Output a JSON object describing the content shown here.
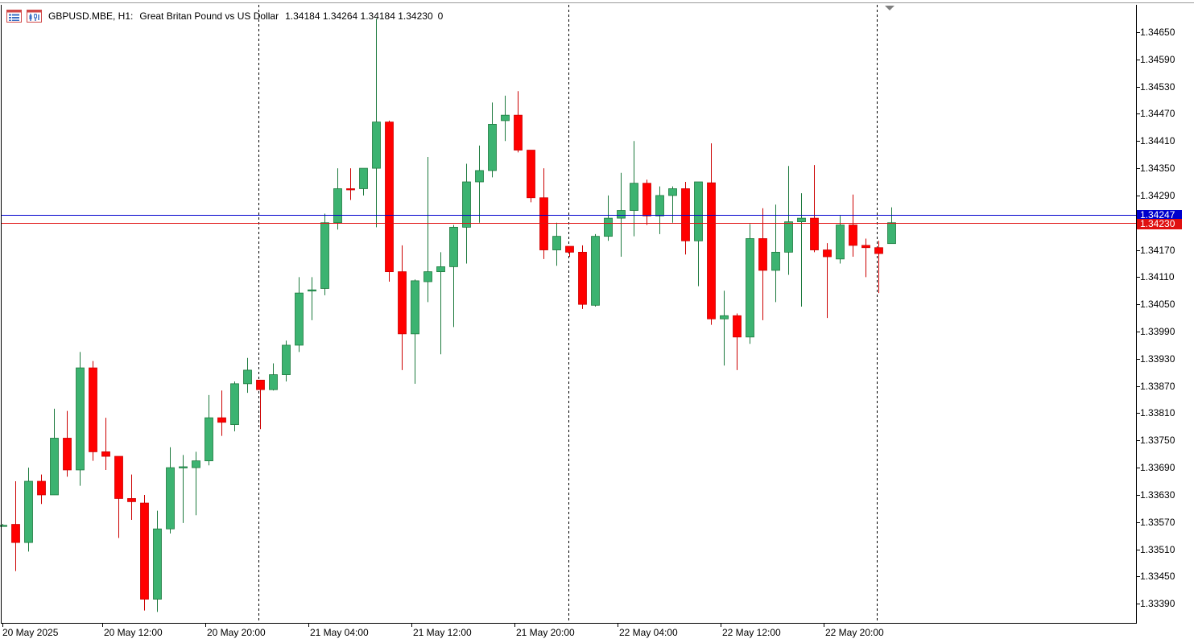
{
  "header": {
    "symbol": "GBPUSD.MBE, H1:",
    "description": "Great Britan Pound vs US Dollar",
    "ohlc": "1.34184 1.34264 1.34184 1.34230",
    "volume": "0",
    "icons": [
      "chart-list-icon",
      "chart-bars-icon"
    ]
  },
  "colors": {
    "bull": "#3cb371",
    "bear": "#ff0000",
    "bid_line": "#0000cd",
    "ask_line": "#e01010",
    "grid": "#000000"
  },
  "price_axis": {
    "labels": [
      "1.34650",
      "1.34590",
      "1.34530",
      "1.34470",
      "1.34410",
      "1.34350",
      "1.34290",
      "1.34170",
      "1.34110",
      "1.34050",
      "1.33990",
      "1.33930",
      "1.33870",
      "1.33810",
      "1.33750",
      "1.33690",
      "1.33630",
      "1.33570",
      "1.33510",
      "1.33450",
      "1.33390"
    ]
  },
  "time_axis": {
    "labels": [
      "20 May 2025",
      "20 May 12:00",
      "20 May 20:00",
      "21 May 04:00",
      "21 May 12:00",
      "21 May 20:00",
      "22 May 04:00",
      "22 May 12:00",
      "22 May 20:00"
    ]
  },
  "price_lines": {
    "bid": "1.34247",
    "ask": "1.34230"
  },
  "chart_data": {
    "type": "candlestick",
    "timeframe": "H1",
    "ylim": [
      1.3336,
      1.3472
    ],
    "candles": [
      {
        "o": 1.33563,
        "h": 1.33566,
        "l": 1.3356,
        "c": 1.33563
      },
      {
        "o": 1.33565,
        "h": 1.3366,
        "l": 1.33462,
        "c": 1.33525
      },
      {
        "o": 1.33525,
        "h": 1.3369,
        "l": 1.33505,
        "c": 1.3366
      },
      {
        "o": 1.3366,
        "h": 1.33675,
        "l": 1.3361,
        "c": 1.3363
      },
      {
        "o": 1.3363,
        "h": 1.3382,
        "l": 1.3363,
        "c": 1.33755
      },
      {
        "o": 1.33755,
        "h": 1.33815,
        "l": 1.3367,
        "c": 1.33685
      },
      {
        "o": 1.33685,
        "h": 1.33945,
        "l": 1.3365,
        "c": 1.3391
      },
      {
        "o": 1.3391,
        "h": 1.33925,
        "l": 1.33705,
        "c": 1.33725
      },
      {
        "o": 1.33725,
        "h": 1.338,
        "l": 1.33685,
        "c": 1.33715
      },
      {
        "o": 1.33715,
        "h": 1.33715,
        "l": 1.33535,
        "c": 1.33622
      },
      {
        "o": 1.33622,
        "h": 1.33675,
        "l": 1.33575,
        "c": 1.33615
      },
      {
        "o": 1.33612,
        "h": 1.3363,
        "l": 1.33375,
        "c": 1.334
      },
      {
        "o": 1.334,
        "h": 1.33595,
        "l": 1.33372,
        "c": 1.33555
      },
      {
        "o": 1.33555,
        "h": 1.33735,
        "l": 1.33545,
        "c": 1.3369
      },
      {
        "o": 1.3369,
        "h": 1.33718,
        "l": 1.33568,
        "c": 1.33692
      },
      {
        "o": 1.3369,
        "h": 1.33725,
        "l": 1.33585,
        "c": 1.33705
      },
      {
        "o": 1.33705,
        "h": 1.3385,
        "l": 1.33695,
        "c": 1.338
      },
      {
        "o": 1.338,
        "h": 1.3386,
        "l": 1.3376,
        "c": 1.3379
      },
      {
        "o": 1.33785,
        "h": 1.3388,
        "l": 1.3377,
        "c": 1.33875
      },
      {
        "o": 1.33875,
        "h": 1.33932,
        "l": 1.33855,
        "c": 1.33905
      },
      {
        "o": 1.33883,
        "h": 1.33883,
        "l": 1.33775,
        "c": 1.33862
      },
      {
        "o": 1.33862,
        "h": 1.3392,
        "l": 1.3386,
        "c": 1.33895
      },
      {
        "o": 1.33895,
        "h": 1.3397,
        "l": 1.3388,
        "c": 1.3396
      },
      {
        "o": 1.3396,
        "h": 1.3411,
        "l": 1.33945,
        "c": 1.34075
      },
      {
        "o": 1.3408,
        "h": 1.3411,
        "l": 1.34015,
        "c": 1.34082
      },
      {
        "o": 1.34085,
        "h": 1.3425,
        "l": 1.3407,
        "c": 1.3423
      },
      {
        "o": 1.3423,
        "h": 1.3435,
        "l": 1.34215,
        "c": 1.34305
      },
      {
        "o": 1.34305,
        "h": 1.3435,
        "l": 1.3428,
        "c": 1.34303
      },
      {
        "o": 1.34305,
        "h": 1.3435,
        "l": 1.3429,
        "c": 1.3435
      },
      {
        "o": 1.3435,
        "h": 1.3468,
        "l": 1.3422,
        "c": 1.34452
      },
      {
        "o": 1.34452,
        "h": 1.34455,
        "l": 1.341,
        "c": 1.34122
      },
      {
        "o": 1.34122,
        "h": 1.3418,
        "l": 1.33905,
        "c": 1.33985
      },
      {
        "o": 1.33985,
        "h": 1.34105,
        "l": 1.33875,
        "c": 1.34102
      },
      {
        "o": 1.341,
        "h": 1.34375,
        "l": 1.34055,
        "c": 1.34122
      },
      {
        "o": 1.34122,
        "h": 1.34165,
        "l": 1.3394,
        "c": 1.34133
      },
      {
        "o": 1.34133,
        "h": 1.34225,
        "l": 1.34,
        "c": 1.3422
      },
      {
        "o": 1.3422,
        "h": 1.3436,
        "l": 1.3414,
        "c": 1.3432
      },
      {
        "o": 1.3432,
        "h": 1.344,
        "l": 1.3423,
        "c": 1.34345
      },
      {
        "o": 1.34345,
        "h": 1.34495,
        "l": 1.3433,
        "c": 1.34447
      },
      {
        "o": 1.34455,
        "h": 1.3451,
        "l": 1.3441,
        "c": 1.34467
      },
      {
        "o": 1.34467,
        "h": 1.3452,
        "l": 1.34385,
        "c": 1.3439
      },
      {
        "o": 1.3439,
        "h": 1.3439,
        "l": 1.34275,
        "c": 1.34285
      },
      {
        "o": 1.34285,
        "h": 1.3435,
        "l": 1.3415,
        "c": 1.3417
      },
      {
        "o": 1.3417,
        "h": 1.3423,
        "l": 1.34135,
        "c": 1.342
      },
      {
        "o": 1.34178,
        "h": 1.34178,
        "l": 1.34155,
        "c": 1.34165
      },
      {
        "o": 1.34165,
        "h": 1.3418,
        "l": 1.3404,
        "c": 1.3405
      },
      {
        "o": 1.34048,
        "h": 1.34205,
        "l": 1.34045,
        "c": 1.342
      },
      {
        "o": 1.342,
        "h": 1.3429,
        "l": 1.3419,
        "c": 1.3424
      },
      {
        "o": 1.3424,
        "h": 1.3434,
        "l": 1.34155,
        "c": 1.34257
      },
      {
        "o": 1.34257,
        "h": 1.3441,
        "l": 1.342,
        "c": 1.34317
      },
      {
        "o": 1.34317,
        "h": 1.34325,
        "l": 1.34225,
        "c": 1.34245
      },
      {
        "o": 1.34245,
        "h": 1.3431,
        "l": 1.34205,
        "c": 1.3429
      },
      {
        "o": 1.3429,
        "h": 1.3431,
        "l": 1.3423,
        "c": 1.34305
      },
      {
        "o": 1.34305,
        "h": 1.3432,
        "l": 1.3416,
        "c": 1.3419
      },
      {
        "o": 1.3419,
        "h": 1.3432,
        "l": 1.3409,
        "c": 1.3432
      },
      {
        "o": 1.34318,
        "h": 1.34405,
        "l": 1.34005,
        "c": 1.34018
      },
      {
        "o": 1.34018,
        "h": 1.3408,
        "l": 1.33915,
        "c": 1.34025
      },
      {
        "o": 1.34025,
        "h": 1.3403,
        "l": 1.33905,
        "c": 1.33978
      },
      {
        "o": 1.33978,
        "h": 1.34227,
        "l": 1.33963,
        "c": 1.34195
      },
      {
        "o": 1.34195,
        "h": 1.34262,
        "l": 1.34015,
        "c": 1.34125
      },
      {
        "o": 1.34125,
        "h": 1.3427,
        "l": 1.34055,
        "c": 1.34165
      },
      {
        "o": 1.34165,
        "h": 1.34355,
        "l": 1.34115,
        "c": 1.34232
      },
      {
        "o": 1.34232,
        "h": 1.34295,
        "l": 1.34045,
        "c": 1.3424
      },
      {
        "o": 1.3424,
        "h": 1.34357,
        "l": 1.34165,
        "c": 1.3417
      },
      {
        "o": 1.3417,
        "h": 1.34185,
        "l": 1.3402,
        "c": 1.34155
      },
      {
        "o": 1.3415,
        "h": 1.34245,
        "l": 1.3414,
        "c": 1.34225
      },
      {
        "o": 1.34225,
        "h": 1.34292,
        "l": 1.34155,
        "c": 1.3418
      },
      {
        "o": 1.3418,
        "h": 1.34195,
        "l": 1.3411,
        "c": 1.34175
      },
      {
        "o": 1.34175,
        "h": 1.3419,
        "l": 1.34075,
        "c": 1.34162
      },
      {
        "o": 1.34184,
        "h": 1.34264,
        "l": 1.34184,
        "c": 1.3423
      }
    ]
  }
}
